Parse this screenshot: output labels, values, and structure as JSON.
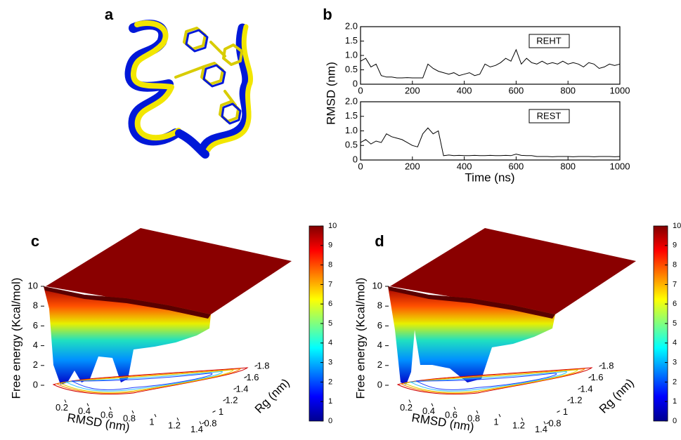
{
  "structure_panel": {
    "label": "a"
  },
  "chart_data": [
    {
      "type": "line",
      "panel": "b",
      "ylabel": "RMSD (nm)",
      "x": [
        0,
        20,
        40,
        60,
        80,
        100,
        120,
        140,
        160,
        180,
        200,
        220,
        240,
        260,
        280,
        300,
        320,
        340,
        360,
        380,
        400,
        420,
        440,
        460,
        480,
        500,
        520,
        540,
        560,
        580,
        600,
        620,
        640,
        660,
        680,
        700,
        720,
        740,
        760,
        780,
        800,
        820,
        840,
        860,
        880,
        900,
        920,
        940,
        960,
        980,
        1000
      ],
      "series": [
        {
          "name": "REHT",
          "color": "#000000",
          "values": [
            0.8,
            0.9,
            0.6,
            0.7,
            0.3,
            0.25,
            0.25,
            0.22,
            0.22,
            0.23,
            0.22,
            0.22,
            0.22,
            0.7,
            0.55,
            0.45,
            0.4,
            0.35,
            0.4,
            0.3,
            0.35,
            0.4,
            0.3,
            0.35,
            0.7,
            0.6,
            0.65,
            0.75,
            0.9,
            0.8,
            1.2,
            0.7,
            0.9,
            0.75,
            0.7,
            0.8,
            0.7,
            0.75,
            0.7,
            0.8,
            0.7,
            0.75,
            0.7,
            0.6,
            0.75,
            0.7,
            0.55,
            0.6,
            0.7,
            0.65,
            0.7
          ]
        }
      ],
      "xlim": [
        0,
        1000
      ],
      "xticks": [
        0,
        200,
        400,
        600,
        800,
        1000
      ],
      "ylim": [
        0,
        2
      ],
      "yticks": [
        0,
        0.5,
        {
          "value": 1,
          "label": "1.0"
        },
        1.5,
        {
          "value": 2,
          "label": "2.0"
        }
      ]
    },
    {
      "type": "line",
      "xlabel": "Time (ns)",
      "x": [
        0,
        20,
        40,
        60,
        80,
        100,
        120,
        140,
        160,
        180,
        200,
        220,
        240,
        260,
        280,
        300,
        320,
        340,
        360,
        380,
        400,
        420,
        440,
        460,
        480,
        500,
        520,
        540,
        560,
        580,
        600,
        620,
        640,
        660,
        680,
        700,
        720,
        740,
        760,
        780,
        800,
        820,
        840,
        860,
        880,
        900,
        920,
        940,
        960,
        980,
        1000
      ],
      "series": [
        {
          "name": "REST",
          "color": "#000000",
          "values": [
            0.6,
            0.7,
            0.55,
            0.65,
            0.6,
            0.9,
            0.8,
            0.75,
            0.7,
            0.6,
            0.5,
            0.45,
            0.9,
            1.1,
            0.9,
            1.0,
            0.15,
            0.17,
            0.15,
            0.16,
            0.15,
            0.15,
            0.16,
            0.15,
            0.15,
            0.16,
            0.15,
            0.15,
            0.16,
            0.15,
            0.2,
            0.16,
            0.15,
            0.15,
            0.12,
            0.12,
            0.12,
            0.11,
            0.12,
            0.12,
            0.12,
            0.11,
            0.12,
            0.12,
            0.12,
            0.11,
            0.12,
            0.12,
            0.12,
            0.11,
            0.12
          ]
        }
      ],
      "xlim": [
        0,
        1000
      ],
      "xticks": [
        0,
        200,
        400,
        600,
        800,
        1000
      ],
      "ylim": [
        0,
        2
      ],
      "yticks": [
        0,
        0.5,
        {
          "value": 1,
          "label": "1.0"
        },
        1.5,
        {
          "value": 2,
          "label": "2.0"
        }
      ]
    },
    {
      "type": "surface3d",
      "panel": "c",
      "xlabel": "RMSD (nm)",
      "ylabel": "Rg (nm)",
      "zlabel": "Free energy (Kcal/mol)",
      "xlim": [
        0.1,
        1.5
      ],
      "xticks": [
        0.2,
        0.4,
        0.6,
        0.8,
        1,
        1.2,
        1.4
      ],
      "ylim": [
        0.7,
        1.9
      ],
      "yticks": [
        0.8,
        1,
        1.2,
        1.4,
        1.6,
        1.8
      ],
      "zlim": [
        0,
        10
      ],
      "zticks": [
        0,
        2,
        4,
        6,
        8,
        10
      ],
      "colormap": "jet",
      "clim": [
        0,
        10
      ],
      "cticks": [
        0,
        1,
        2,
        3,
        4,
        5,
        6,
        7,
        8,
        9,
        10
      ]
    },
    {
      "type": "surface3d",
      "panel": "d",
      "xlabel": "RMSD (nm)",
      "ylabel": "Rg (nm)",
      "zlabel": "Free energy (Kcal/mol)",
      "xlim": [
        0.1,
        1.5
      ],
      "xticks": [
        0.2,
        0.4,
        0.6,
        0.8,
        1,
        1.2,
        1.4
      ],
      "ylim": [
        0.7,
        1.9
      ],
      "yticks": [
        0.8,
        1,
        1.2,
        1.4,
        1.6,
        1.8
      ],
      "zlim": [
        0,
        10
      ],
      "zticks": [
        0,
        2,
        4,
        6,
        8,
        10
      ],
      "colormap": "jet",
      "clim": [
        0,
        10
      ],
      "cticks": [
        0,
        1,
        2,
        3,
        4,
        5,
        6,
        7,
        8,
        9,
        10
      ]
    }
  ]
}
